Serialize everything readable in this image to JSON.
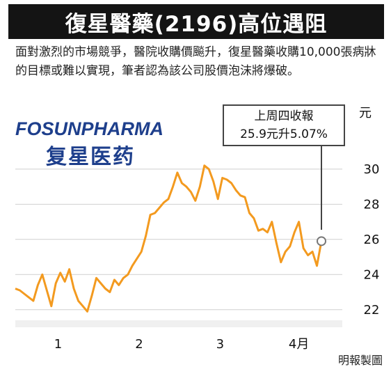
{
  "title": "復星醫藥(2196)高位遇阻",
  "intro": "面對激烈的市場競爭，醫院收購價飈升，復星醫藥收購10,000張病牀的目標或難以實現，筆者認為該公司股價泡沫將爆破。",
  "logo": {
    "en": "FOSUNPHARMA",
    "zh": "复星医药"
  },
  "unit": "元",
  "callout": {
    "line1": "上周四收報",
    "line2": "25.9元升5.07%"
  },
  "credit": "明報製圖",
  "colors": {
    "line": "#f39a1f",
    "title_bg": "#141414",
    "logo": "#1e3f8c"
  },
  "chart_data": {
    "type": "line",
    "title": "",
    "xlabel": "",
    "ylabel": "元",
    "ylim": [
      21,
      31.5
    ],
    "yticks": [
      22,
      24,
      26,
      28,
      30
    ],
    "xticks": [
      {
        "label": "1",
        "pos": 9.5
      },
      {
        "label": "2",
        "pos": 27.5
      },
      {
        "label": "3",
        "pos": 45.5
      },
      {
        "label": "4月",
        "pos": 63
      }
    ],
    "series": [
      {
        "values": [
          23.2,
          23.1,
          22.9,
          22.7,
          22.5,
          23.4,
          24.0,
          23.1,
          22.2,
          23.5,
          24.1,
          23.6,
          24.3,
          23.2,
          22.5,
          22.2,
          21.9,
          22.8,
          23.8,
          23.5,
          23.2,
          23.0,
          23.7,
          23.4,
          23.8,
          24.0,
          24.5,
          24.9,
          25.3,
          26.2,
          27.4,
          27.5,
          27.8,
          28.1,
          28.3,
          29.0,
          29.8,
          29.2,
          29.0,
          28.7,
          28.2,
          29.0,
          30.2,
          30.0,
          29.3,
          28.3,
          29.5,
          29.4,
          29.2,
          28.8,
          28.5,
          28.4,
          27.5,
          27.2,
          26.5,
          26.6,
          26.4,
          27.0,
          25.8,
          24.7,
          25.3,
          25.6,
          26.4,
          27.0,
          25.5,
          25.1,
          25.3,
          24.5,
          25.9
        ]
      }
    ],
    "last_point": {
      "value": 25.9
    }
  }
}
